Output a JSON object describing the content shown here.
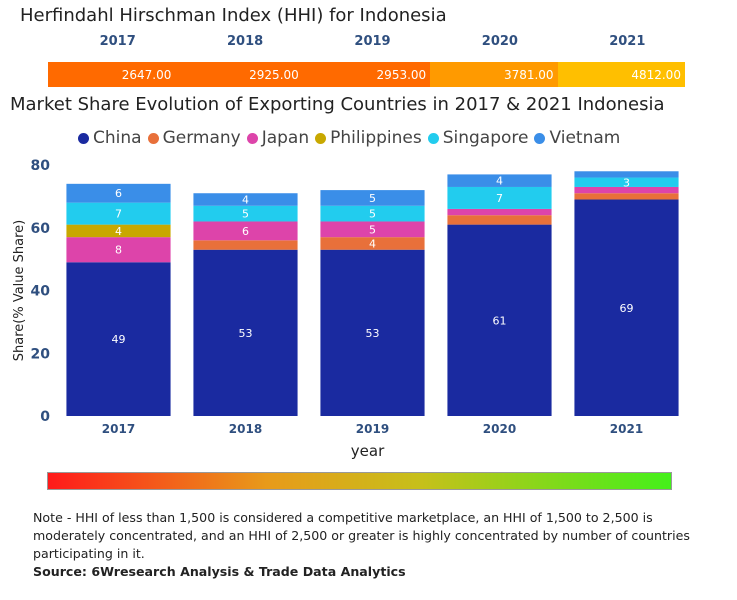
{
  "hhi": {
    "title": "Herfindahl Hirschman Index (HHI) for Indonesia",
    "items": [
      {
        "year": "2017",
        "value": "2647.00",
        "color": "#ff6a00"
      },
      {
        "year": "2018",
        "value": "2925.00",
        "color": "#ff6a00"
      },
      {
        "year": "2019",
        "value": "2953.00",
        "color": "#ff6a00"
      },
      {
        "year": "2020",
        "value": "3781.00",
        "color": "#ff9a00"
      },
      {
        "year": "2021",
        "value": "4812.00",
        "color": "#ffbf00"
      }
    ]
  },
  "chart_data": {
    "type": "bar",
    "stacked": true,
    "title": "Market Share Evolution of Exporting Countries in 2017 & 2021 Indonesia",
    "xlabel": "year",
    "ylabel": "Share(% Value Share)",
    "ylim": [
      0,
      80
    ],
    "yticks": [
      "0",
      "20",
      "40",
      "60",
      "80"
    ],
    "categories": [
      "2017",
      "2018",
      "2019",
      "2020",
      "2021"
    ],
    "series": [
      {
        "name": "China",
        "color": "#1a2aa0",
        "values": [
          49,
          53,
          53,
          61,
          69
        ],
        "labels": [
          "49",
          "53",
          "53",
          "61",
          "69"
        ]
      },
      {
        "name": "Germany",
        "color": "#e8703a",
        "values": [
          0,
          3,
          4,
          3,
          2
        ],
        "labels": [
          "",
          "",
          "4",
          "",
          ""
        ]
      },
      {
        "name": "Japan",
        "color": "#dd44aa",
        "values": [
          8,
          6,
          5,
          2,
          2
        ],
        "labels": [
          "8",
          "6",
          "5",
          "",
          ""
        ]
      },
      {
        "name": "Philippines",
        "color": "#c8a800",
        "values": [
          4,
          0,
          0,
          0,
          0
        ],
        "labels": [
          "4",
          "",
          "",
          "",
          ""
        ]
      },
      {
        "name": "Singapore",
        "color": "#22ccee",
        "values": [
          7,
          5,
          5,
          7,
          3
        ],
        "labels": [
          "7",
          "5",
          "5",
          "7",
          "3"
        ]
      },
      {
        "name": "Vietnam",
        "color": "#3a8ee8",
        "values": [
          6,
          4,
          5,
          4,
          2
        ],
        "labels": [
          "6",
          "4",
          "5",
          "4",
          ""
        ]
      }
    ]
  },
  "gradient_legend": {
    "left_color": "#ff1a1a",
    "right_color": "#44f01a"
  },
  "note": "Note - HHI of less than 1,500 is considered a competitive marketplace, an HHI of 1,500 to 2,500 is moderately concentrated, and an HHI of 2,500 or greater is highly concentrated by number of countries participating in it.",
  "source": "Source: 6Wresearch Analysis & Trade Data Analytics"
}
